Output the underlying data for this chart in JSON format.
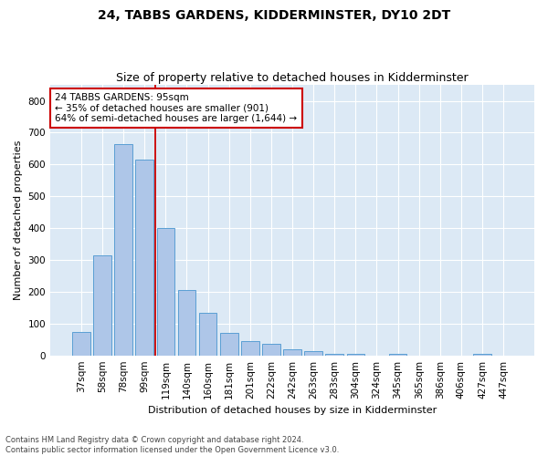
{
  "title": "24, TABBS GARDENS, KIDDERMINSTER, DY10 2DT",
  "subtitle": "Size of property relative to detached houses in Kidderminster",
  "xlabel": "Distribution of detached houses by size in Kidderminster",
  "ylabel": "Number of detached properties",
  "categories": [
    "37sqm",
    "58sqm",
    "78sqm",
    "99sqm",
    "119sqm",
    "140sqm",
    "160sqm",
    "181sqm",
    "201sqm",
    "222sqm",
    "242sqm",
    "263sqm",
    "283sqm",
    "304sqm",
    "324sqm",
    "345sqm",
    "365sqm",
    "386sqm",
    "406sqm",
    "427sqm",
    "447sqm"
  ],
  "values": [
    75,
    315,
    665,
    615,
    400,
    205,
    133,
    70,
    45,
    35,
    20,
    12,
    5,
    5,
    0,
    5,
    0,
    0,
    0,
    5,
    0
  ],
  "bar_color": "#aec6e8",
  "bar_edge_color": "#5a9fd4",
  "property_line_index": 3,
  "property_line_color": "#cc0000",
  "annotation_text": "24 TABBS GARDENS: 95sqm\n← 35% of detached houses are smaller (901)\n64% of semi-detached houses are larger (1,644) →",
  "annotation_box_facecolor": "#ffffff",
  "annotation_box_edgecolor": "#cc0000",
  "ylim": [
    0,
    850
  ],
  "yticks": [
    0,
    100,
    200,
    300,
    400,
    500,
    600,
    700,
    800
  ],
  "footer_text": "Contains HM Land Registry data © Crown copyright and database right 2024.\nContains public sector information licensed under the Open Government Licence v3.0.",
  "plot_background_color": "#dce9f5",
  "fig_background_color": "#ffffff",
  "title_fontsize": 10,
  "subtitle_fontsize": 9,
  "xlabel_fontsize": 8,
  "ylabel_fontsize": 8,
  "tick_fontsize": 7.5,
  "annotation_fontsize": 7.5,
  "footer_fontsize": 6
}
